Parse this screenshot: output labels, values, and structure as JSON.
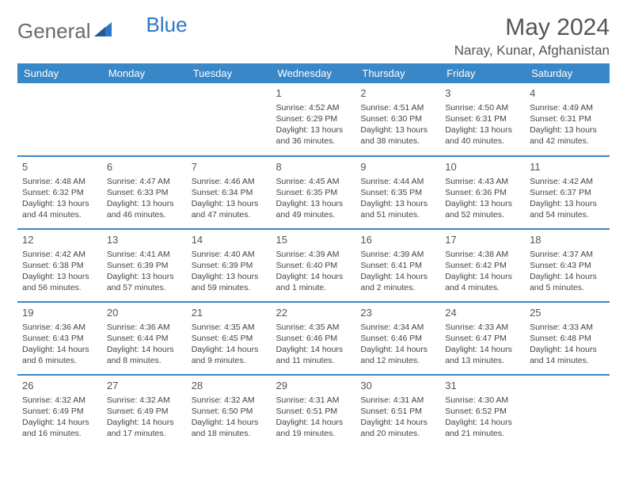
{
  "brand": {
    "part1": "General",
    "part2": "Blue"
  },
  "title": "May 2024",
  "location": "Naray, Kunar, Afghanistan",
  "header_bg": "#3a87c8",
  "weekdays": [
    "Sunday",
    "Monday",
    "Tuesday",
    "Wednesday",
    "Thursday",
    "Friday",
    "Saturday"
  ],
  "weeks": [
    [
      null,
      null,
      null,
      {
        "d": "1",
        "sr": "4:52 AM",
        "ss": "6:29 PM",
        "dl1": "Daylight: 13 hours",
        "dl2": "and 36 minutes."
      },
      {
        "d": "2",
        "sr": "4:51 AM",
        "ss": "6:30 PM",
        "dl1": "Daylight: 13 hours",
        "dl2": "and 38 minutes."
      },
      {
        "d": "3",
        "sr": "4:50 AM",
        "ss": "6:31 PM",
        "dl1": "Daylight: 13 hours",
        "dl2": "and 40 minutes."
      },
      {
        "d": "4",
        "sr": "4:49 AM",
        "ss": "6:31 PM",
        "dl1": "Daylight: 13 hours",
        "dl2": "and 42 minutes."
      }
    ],
    [
      {
        "d": "5",
        "sr": "4:48 AM",
        "ss": "6:32 PM",
        "dl1": "Daylight: 13 hours",
        "dl2": "and 44 minutes."
      },
      {
        "d": "6",
        "sr": "4:47 AM",
        "ss": "6:33 PM",
        "dl1": "Daylight: 13 hours",
        "dl2": "and 46 minutes."
      },
      {
        "d": "7",
        "sr": "4:46 AM",
        "ss": "6:34 PM",
        "dl1": "Daylight: 13 hours",
        "dl2": "and 47 minutes."
      },
      {
        "d": "8",
        "sr": "4:45 AM",
        "ss": "6:35 PM",
        "dl1": "Daylight: 13 hours",
        "dl2": "and 49 minutes."
      },
      {
        "d": "9",
        "sr": "4:44 AM",
        "ss": "6:35 PM",
        "dl1": "Daylight: 13 hours",
        "dl2": "and 51 minutes."
      },
      {
        "d": "10",
        "sr": "4:43 AM",
        "ss": "6:36 PM",
        "dl1": "Daylight: 13 hours",
        "dl2": "and 52 minutes."
      },
      {
        "d": "11",
        "sr": "4:42 AM",
        "ss": "6:37 PM",
        "dl1": "Daylight: 13 hours",
        "dl2": "and 54 minutes."
      }
    ],
    [
      {
        "d": "12",
        "sr": "4:42 AM",
        "ss": "6:38 PM",
        "dl1": "Daylight: 13 hours",
        "dl2": "and 56 minutes."
      },
      {
        "d": "13",
        "sr": "4:41 AM",
        "ss": "6:39 PM",
        "dl1": "Daylight: 13 hours",
        "dl2": "and 57 minutes."
      },
      {
        "d": "14",
        "sr": "4:40 AM",
        "ss": "6:39 PM",
        "dl1": "Daylight: 13 hours",
        "dl2": "and 59 minutes."
      },
      {
        "d": "15",
        "sr": "4:39 AM",
        "ss": "6:40 PM",
        "dl1": "Daylight: 14 hours",
        "dl2": "and 1 minute."
      },
      {
        "d": "16",
        "sr": "4:39 AM",
        "ss": "6:41 PM",
        "dl1": "Daylight: 14 hours",
        "dl2": "and 2 minutes."
      },
      {
        "d": "17",
        "sr": "4:38 AM",
        "ss": "6:42 PM",
        "dl1": "Daylight: 14 hours",
        "dl2": "and 4 minutes."
      },
      {
        "d": "18",
        "sr": "4:37 AM",
        "ss": "6:43 PM",
        "dl1": "Daylight: 14 hours",
        "dl2": "and 5 minutes."
      }
    ],
    [
      {
        "d": "19",
        "sr": "4:36 AM",
        "ss": "6:43 PM",
        "dl1": "Daylight: 14 hours",
        "dl2": "and 6 minutes."
      },
      {
        "d": "20",
        "sr": "4:36 AM",
        "ss": "6:44 PM",
        "dl1": "Daylight: 14 hours",
        "dl2": "and 8 minutes."
      },
      {
        "d": "21",
        "sr": "4:35 AM",
        "ss": "6:45 PM",
        "dl1": "Daylight: 14 hours",
        "dl2": "and 9 minutes."
      },
      {
        "d": "22",
        "sr": "4:35 AM",
        "ss": "6:46 PM",
        "dl1": "Daylight: 14 hours",
        "dl2": "and 11 minutes."
      },
      {
        "d": "23",
        "sr": "4:34 AM",
        "ss": "6:46 PM",
        "dl1": "Daylight: 14 hours",
        "dl2": "and 12 minutes."
      },
      {
        "d": "24",
        "sr": "4:33 AM",
        "ss": "6:47 PM",
        "dl1": "Daylight: 14 hours",
        "dl2": "and 13 minutes."
      },
      {
        "d": "25",
        "sr": "4:33 AM",
        "ss": "6:48 PM",
        "dl1": "Daylight: 14 hours",
        "dl2": "and 14 minutes."
      }
    ],
    [
      {
        "d": "26",
        "sr": "4:32 AM",
        "ss": "6:49 PM",
        "dl1": "Daylight: 14 hours",
        "dl2": "and 16 minutes."
      },
      {
        "d": "27",
        "sr": "4:32 AM",
        "ss": "6:49 PM",
        "dl1": "Daylight: 14 hours",
        "dl2": "and 17 minutes."
      },
      {
        "d": "28",
        "sr": "4:32 AM",
        "ss": "6:50 PM",
        "dl1": "Daylight: 14 hours",
        "dl2": "and 18 minutes."
      },
      {
        "d": "29",
        "sr": "4:31 AM",
        "ss": "6:51 PM",
        "dl1": "Daylight: 14 hours",
        "dl2": "and 19 minutes."
      },
      {
        "d": "30",
        "sr": "4:31 AM",
        "ss": "6:51 PM",
        "dl1": "Daylight: 14 hours",
        "dl2": "and 20 minutes."
      },
      {
        "d": "31",
        "sr": "4:30 AM",
        "ss": "6:52 PM",
        "dl1": "Daylight: 14 hours",
        "dl2": "and 21 minutes."
      },
      null
    ]
  ],
  "labels": {
    "sunrise": "Sunrise: ",
    "sunset": "Sunset: "
  }
}
